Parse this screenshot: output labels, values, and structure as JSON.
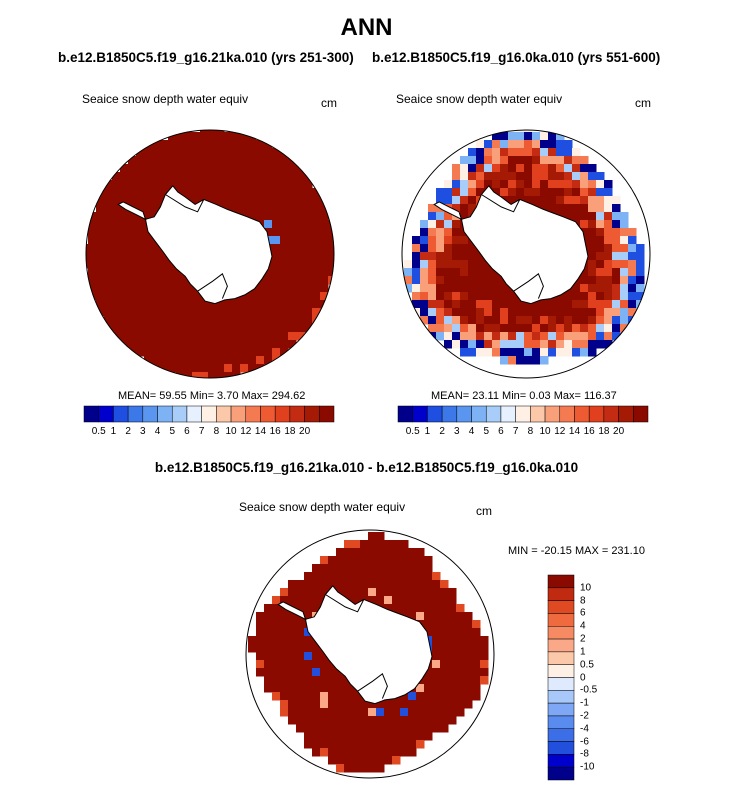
{
  "title": "ANN",
  "colors": {
    "dark_red": "#8b0a00",
    "coast": "#000000",
    "land": "#ffffff",
    "ice_blue_dark": "#00008b",
    "abs_palette": [
      "#00008b",
      "#0000cd",
      "#1f4fe0",
      "#3c78e8",
      "#5a96f0",
      "#7db2f5",
      "#a8cdf8",
      "#e6f0ff",
      "#fff0e6",
      "#fcc8aa",
      "#f9a07b",
      "#f47a52",
      "#ee5a32",
      "#e0401e",
      "#c32c12",
      "#a51a05",
      "#8b0a00"
    ],
    "diff_palette": [
      "#00008b",
      "#0000cd",
      "#2250dc",
      "#3c6ee8",
      "#5a8cf0",
      "#7ea8f6",
      "#a8c8fa",
      "#dfeaff",
      "#fff0e6",
      "#fcc8aa",
      "#fba888",
      "#f68a62",
      "#f06a40",
      "#e04a22",
      "#c02a10",
      "#8b0a00"
    ]
  },
  "left_panel": {
    "case": "b.e12.B1850C5.f19_g16.21ka.010 (yrs 251-300)",
    "variable": "Seaice snow depth water equiv",
    "units": "cm",
    "stats": "MEAN=  59.55  Min=    3.70  Max= 294.62"
  },
  "right_panel": {
    "case": "b.e12.B1850C5.f19_g16.0ka.010 (yrs 551-600)",
    "variable": "Seaice snow depth water equiv",
    "units": "cm",
    "stats": "MEAN=  23.11  Min=    0.03  Max= 116.37"
  },
  "abs_colorbar_labels": [
    "0.5",
    "1",
    "2",
    "3",
    "4",
    "5",
    "6",
    "7",
    "8",
    "10",
    "12",
    "14",
    "16",
    "18",
    "20"
  ],
  "diff_panel": {
    "title": "b.e12.B1850C5.f19_g16.21ka.010 - b.e12.B1850C5.f19_g16.0ka.010",
    "variable": "Seaice snow depth water equiv",
    "units": "cm",
    "stats": "MIN = -20.15 MAX = 231.10"
  },
  "diff_colorbar_labels": [
    "10",
    "8",
    "6",
    "4",
    "2",
    "1",
    "0.5",
    "0",
    "-0.5",
    "-1",
    "-2",
    "-4",
    "-6",
    "-8",
    "-10"
  ],
  "chart_data": [
    {
      "type": "heatmap",
      "title": "Seaice snow depth water equiv",
      "subtitle": "b.e12.B1850C5.f19_g16.21ka.010 (yrs 251-300)",
      "projection": "south polar stereographic",
      "units": "cm",
      "mean": 59.55,
      "min": 3.7,
      "max": 294.62,
      "levels": [
        0.5,
        1,
        2,
        3,
        4,
        5,
        6,
        7,
        8,
        10,
        12,
        14,
        16,
        18,
        20
      ],
      "dominant_value": "> 20"
    },
    {
      "type": "heatmap",
      "title": "Seaice snow depth water equiv",
      "subtitle": "b.e12.B1850C5.f19_g16.0ka.010 (yrs 551-600)",
      "projection": "south polar stereographic",
      "units": "cm",
      "mean": 23.11,
      "min": 0.03,
      "max": 116.37,
      "levels": [
        0.5,
        1,
        2,
        3,
        4,
        5,
        6,
        7,
        8,
        10,
        12,
        14,
        16,
        18,
        20
      ]
    },
    {
      "type": "heatmap",
      "title": "Seaice snow depth water equiv",
      "subtitle": "b.e12.B1850C5.f19_g16.21ka.010 - b.e12.B1850C5.f19_g16.0ka.010",
      "projection": "south polar stereographic",
      "units": "cm",
      "min": -20.15,
      "max": 231.1,
      "levels": [
        -10,
        -8,
        -6,
        -4,
        -2,
        -1,
        -0.5,
        0,
        0.5,
        1,
        2,
        4,
        6,
        8,
        10
      ]
    }
  ]
}
